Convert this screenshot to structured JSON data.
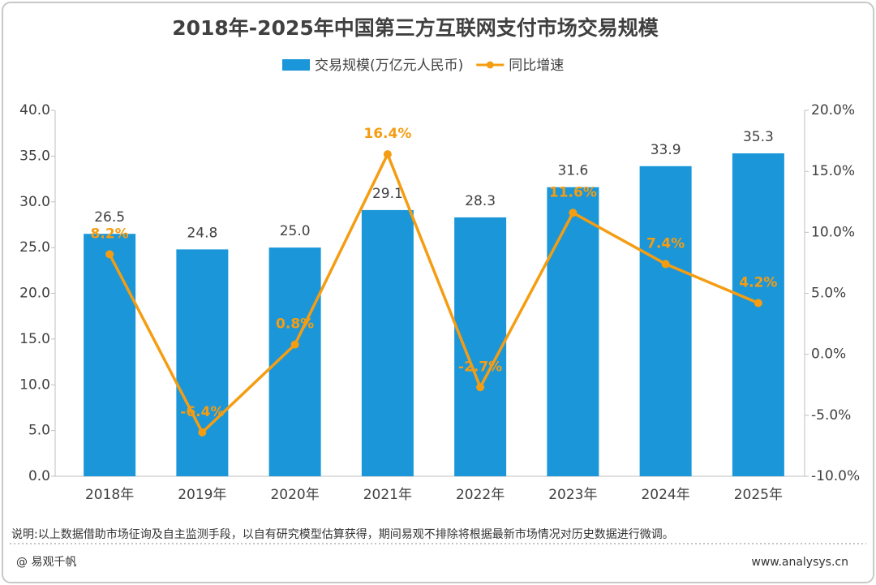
{
  "chart_data": {
    "type": "bar",
    "title": "2018年-2025年中国第三方互联网支付市场交易规模",
    "categories": [
      "2018年",
      "2019年",
      "2020年",
      "2021年",
      "2022年",
      "2023年",
      "2024年",
      "2025年"
    ],
    "series": [
      {
        "name": "交易规模(万亿元人民币)",
        "type": "bar",
        "color": "#1a96d9",
        "values": [
          26.5,
          24.8,
          25.0,
          29.1,
          28.3,
          31.6,
          33.9,
          35.3
        ],
        "value_labels": [
          "26.5",
          "24.8",
          "25.0",
          "29.1",
          "28.3",
          "31.6",
          "33.9",
          "35.3"
        ]
      },
      {
        "name": "同比增速",
        "type": "line",
        "axis": "y2",
        "color": "#f59d12",
        "values": [
          8.2,
          -6.4,
          0.8,
          16.4,
          -2.7,
          11.6,
          7.4,
          4.2
        ],
        "value_labels": [
          "8.2%",
          "-6.4%",
          "0.8%",
          "16.4%",
          "-2.7%",
          "11.6%",
          "7.4%",
          "4.2%"
        ]
      }
    ],
    "ylim": [
      0,
      40
    ],
    "yticks": [
      {
        "value": 0,
        "label": "0.0"
      },
      {
        "value": 5,
        "label": "5.0"
      },
      {
        "value": 10,
        "label": "10.0"
      },
      {
        "value": 15,
        "label": "15.0"
      },
      {
        "value": 20,
        "label": "20.0"
      },
      {
        "value": 25,
        "label": "25.0"
      },
      {
        "value": 30,
        "label": "30.0"
      },
      {
        "value": 35,
        "label": "35.0"
      },
      {
        "value": 40,
        "label": "40.0"
      }
    ],
    "y2lim": [
      -10,
      20
    ],
    "y2ticks": [
      {
        "value": -10,
        "label": "-10.0%"
      },
      {
        "value": -5,
        "label": "-5.0%"
      },
      {
        "value": 0,
        "label": "0.0%"
      },
      {
        "value": 5,
        "label": "5.0%"
      },
      {
        "value": 10,
        "label": "10.0%"
      },
      {
        "value": 15,
        "label": "15.0%"
      },
      {
        "value": 20,
        "label": "20.0%"
      }
    ],
    "grid": false,
    "legend": "top",
    "note": "说明:以上数据借助市场征询及自主监测手段，以自有研究模型估算获得，期间易观不排除将根据最新市场情况对历史数据进行微调。",
    "source": "@ 易观千帆",
    "website": "www.analysys.cn"
  }
}
